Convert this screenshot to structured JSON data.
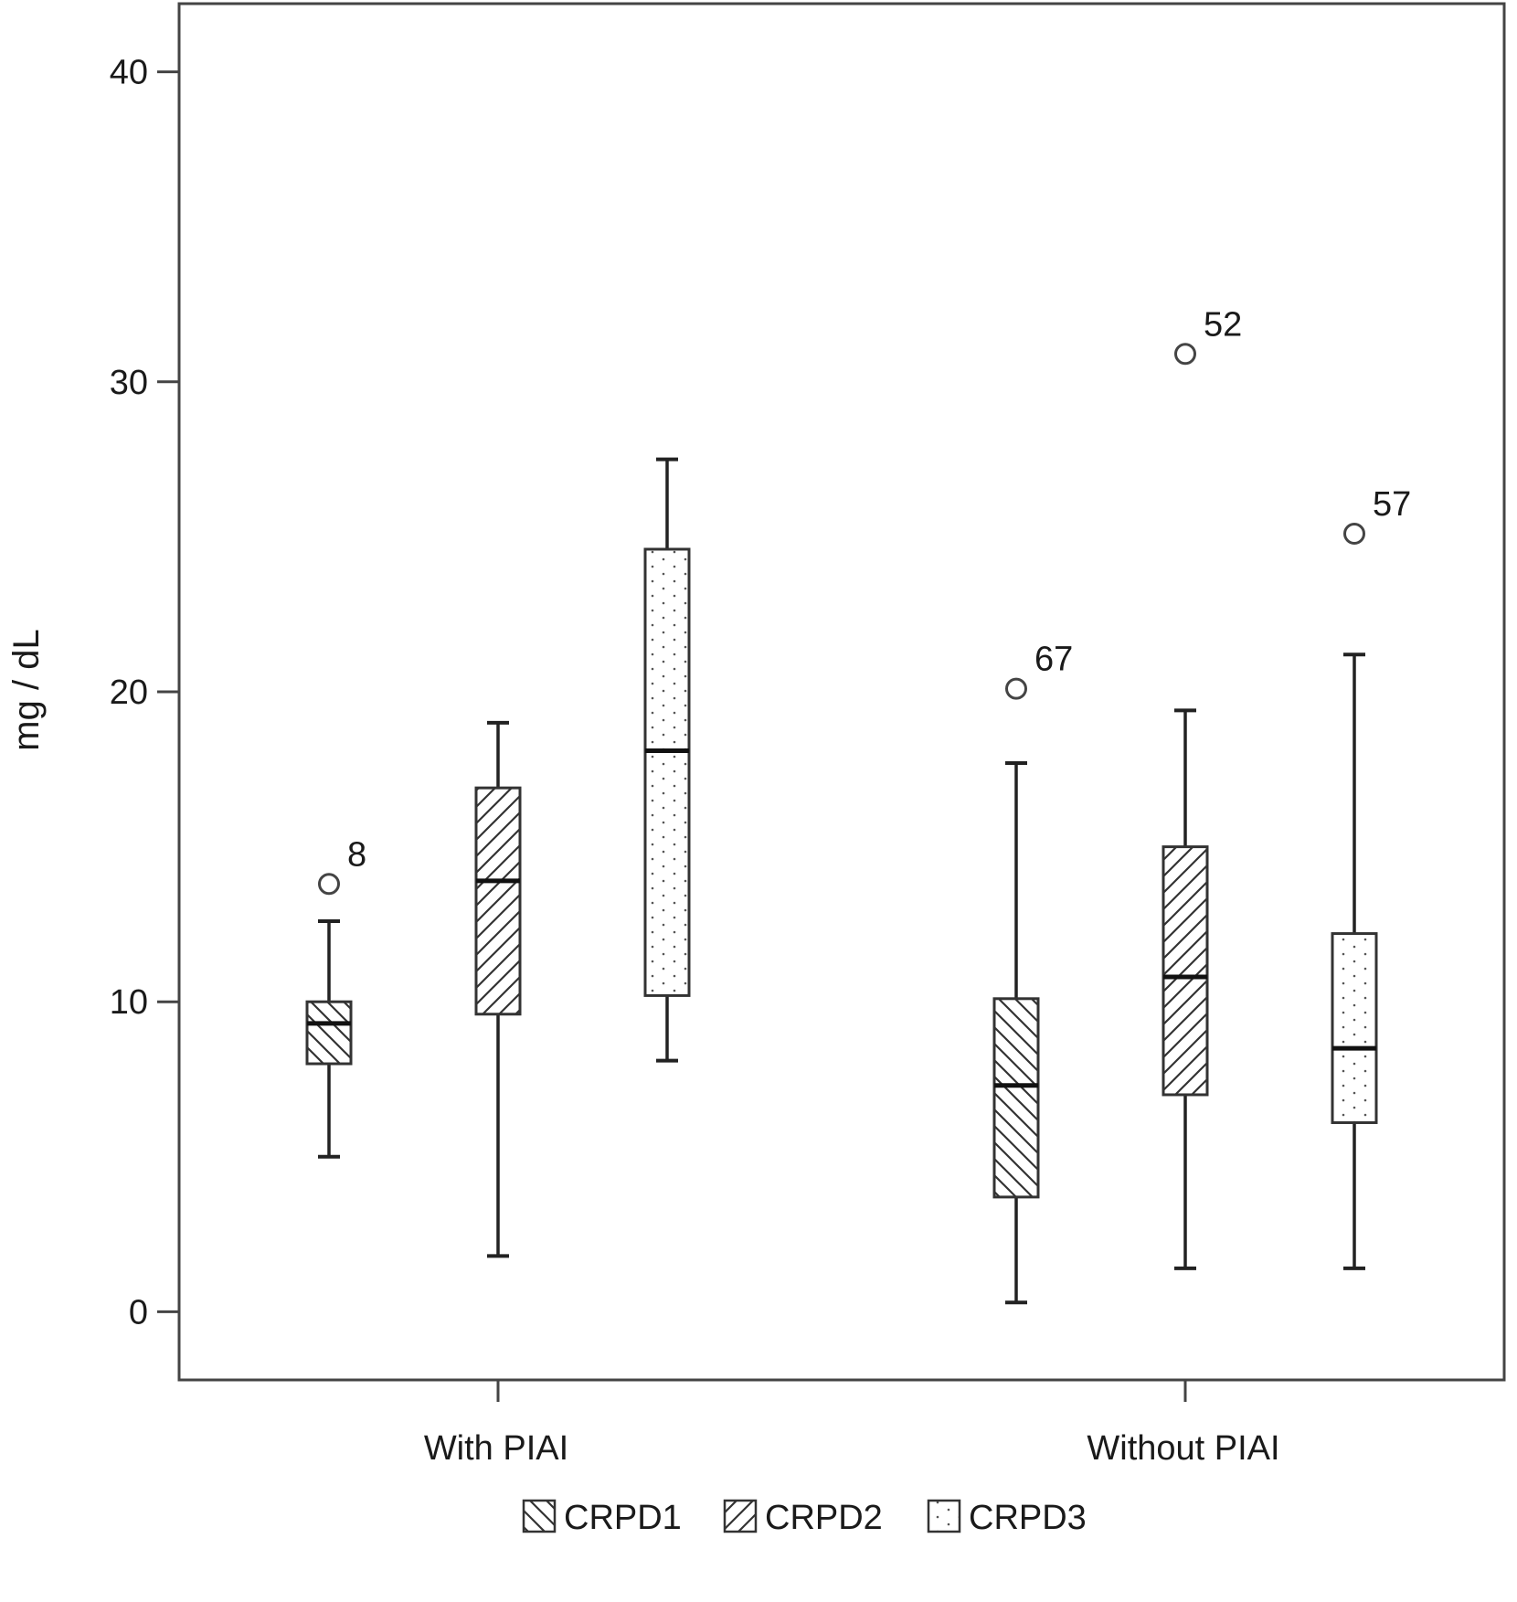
{
  "chart_data": {
    "type": "boxplot",
    "title": "",
    "xlabel": "",
    "ylabel": "mg / dL",
    "ylim": [
      -2.2,
      42.2
    ],
    "yticks": [
      0,
      10,
      20,
      30,
      40
    ],
    "categories": [
      "With PIAI",
      "Without PIAI"
    ],
    "legend_position": "bottom",
    "grid": false,
    "series": [
      {
        "name": "CRPD1",
        "pattern": "diagonal-down",
        "boxes": [
          {
            "category": "With PIAI",
            "whisker_low": 5.0,
            "q1": 8.0,
            "median": 9.3,
            "q3": 10.0,
            "whisker_high": 12.6,
            "outliers": [
              {
                "value": 13.8,
                "label": "8"
              }
            ]
          },
          {
            "category": "Without PIAI",
            "whisker_low": 0.3,
            "q1": 3.7,
            "median": 7.3,
            "q3": 10.1,
            "whisker_high": 17.7,
            "outliers": [
              {
                "value": 20.1,
                "label": "67"
              }
            ]
          }
        ]
      },
      {
        "name": "CRPD2",
        "pattern": "diagonal-up",
        "boxes": [
          {
            "category": "With PIAI",
            "whisker_low": 1.8,
            "q1": 9.6,
            "median": 13.9,
            "q3": 16.9,
            "whisker_high": 19.0,
            "outliers": []
          },
          {
            "category": "Without PIAI",
            "whisker_low": 1.4,
            "q1": 7.0,
            "median": 10.8,
            "q3": 15.0,
            "whisker_high": 19.4,
            "outliers": [
              {
                "value": 30.9,
                "label": "52"
              }
            ]
          }
        ]
      },
      {
        "name": "CRPD3",
        "pattern": "dotted",
        "boxes": [
          {
            "category": "With PIAI",
            "whisker_low": 8.1,
            "q1": 10.2,
            "median": 18.1,
            "q3": 24.6,
            "whisker_high": 27.5,
            "outliers": []
          },
          {
            "category": "Without PIAI",
            "whisker_low": 1.4,
            "q1": 6.1,
            "median": 8.5,
            "q3": 12.2,
            "whisker_high": 21.2,
            "outliers": [
              {
                "value": 25.1,
                "label": "57"
              }
            ]
          }
        ]
      }
    ]
  }
}
